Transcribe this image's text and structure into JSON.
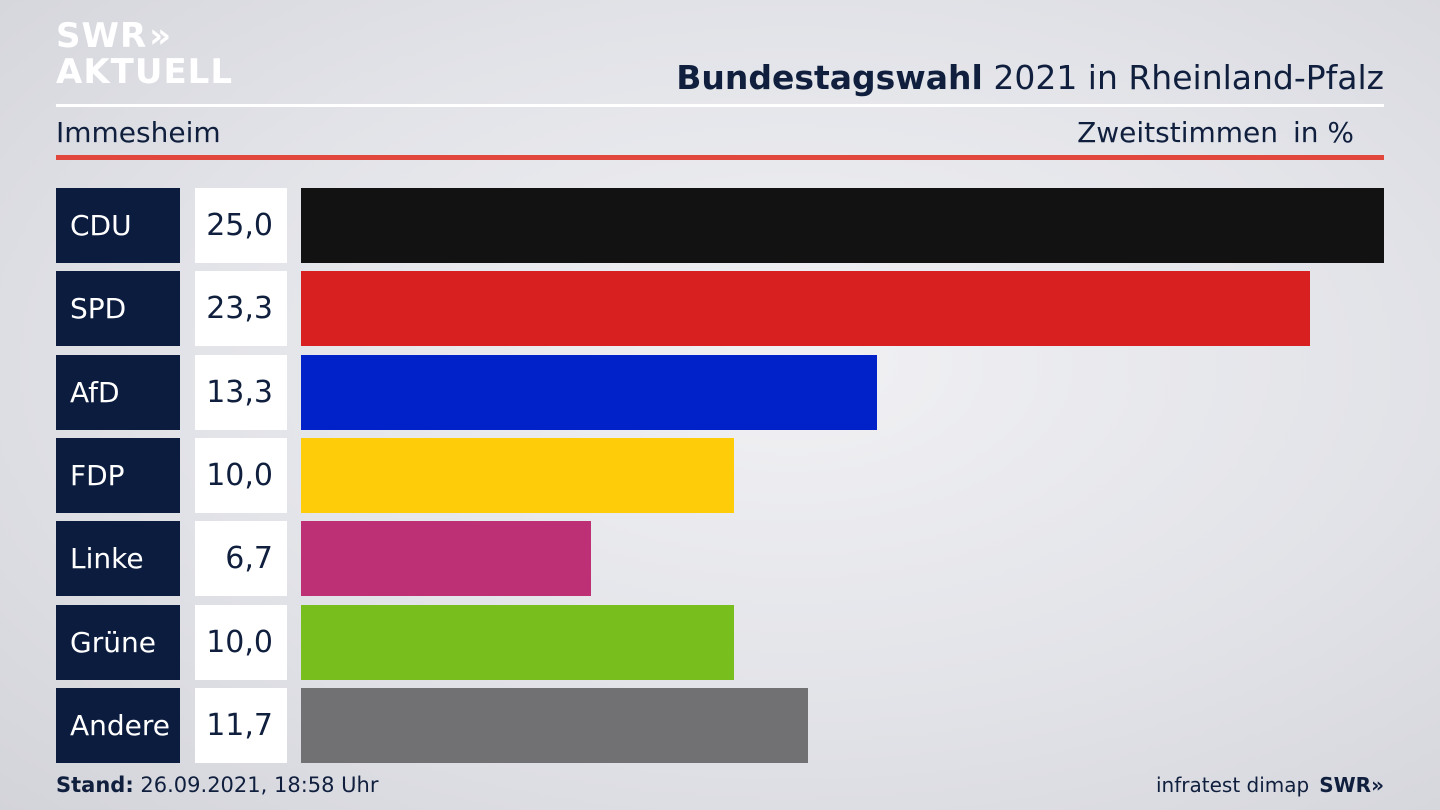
{
  "brand": {
    "logo_top": "SWR",
    "logo_chevrons": "»",
    "logo_bottom": "AKTUELL",
    "footer_logo": "SWR»"
  },
  "header": {
    "title_bold": "Bundestagswahl",
    "title_rest": " 2021 in Rheinland-Pfalz",
    "region": "Immesheim",
    "metric": "Zweitstimmen",
    "unit": "in %"
  },
  "colors": {
    "accent_rule": "#e1473c",
    "label_bg": "#0c1c3f"
  },
  "chart_data": {
    "type": "bar",
    "orientation": "horizontal",
    "categories": [
      "CDU",
      "SPD",
      "AfD",
      "FDP",
      "Linke",
      "Grüne",
      "Andere"
    ],
    "values": [
      25.0,
      23.3,
      13.3,
      10.0,
      6.7,
      10.0,
      11.7
    ],
    "value_labels": [
      "25,0",
      "23,3",
      "13,3",
      "10,0",
      "6,7",
      "10,0",
      "11,7"
    ],
    "colors": [
      "#121212",
      "#d82020",
      "#0022c8",
      "#ffcc0a",
      "#bd3075",
      "#78be1d",
      "#717173"
    ],
    "xlim": [
      0,
      25.0
    ],
    "grid": false
  },
  "footer": {
    "stand_label": "Stand:",
    "stand_value": " 26.09.2021, 18:58 Uhr",
    "source": "infratest dimap"
  }
}
